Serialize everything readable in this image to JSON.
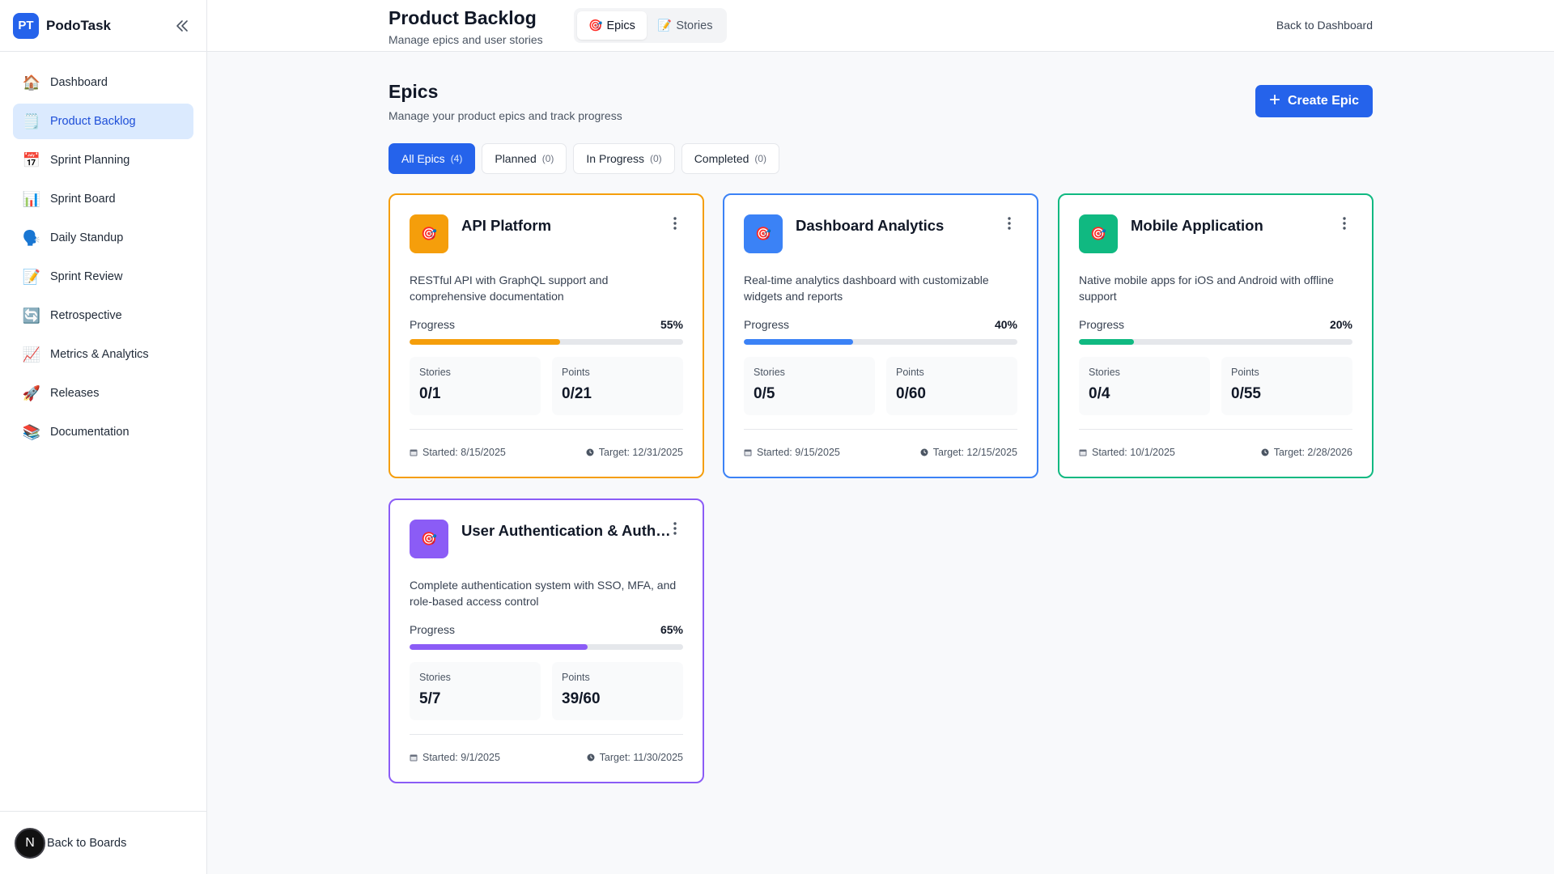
{
  "app": {
    "logo_text": "PT",
    "name": "PodoTask"
  },
  "sidebar": {
    "items": [
      {
        "label": "Dashboard",
        "icon": "🏠",
        "icon_name": "house-icon",
        "active": false
      },
      {
        "label": "Product Backlog",
        "icon": "🗒️",
        "icon_name": "notepad-icon",
        "active": true
      },
      {
        "label": "Sprint Planning",
        "icon": "📅",
        "icon_name": "calendar-icon",
        "active": false
      },
      {
        "label": "Sprint Board",
        "icon": "📊",
        "icon_name": "bar-chart-icon",
        "active": false
      },
      {
        "label": "Daily Standup",
        "icon": "🗣️",
        "icon_name": "speaking-head-icon",
        "active": false
      },
      {
        "label": "Sprint Review",
        "icon": "📝",
        "icon_name": "memo-icon",
        "active": false
      },
      {
        "label": "Retrospective",
        "icon": "🔄",
        "icon_name": "refresh-icon",
        "active": false
      },
      {
        "label": "Metrics & Analytics",
        "icon": "📈",
        "icon_name": "trend-chart-icon",
        "active": false
      },
      {
        "label": "Releases",
        "icon": "🚀",
        "icon_name": "rocket-icon",
        "active": false
      },
      {
        "label": "Documentation",
        "icon": "📚",
        "icon_name": "books-icon",
        "active": false
      }
    ],
    "footer": {
      "badge": "N",
      "label": "Back to Boards"
    }
  },
  "header": {
    "title": "Product Backlog",
    "subtitle": "Manage epics and user stories",
    "tabs": [
      {
        "label": "Epics",
        "icon": "🎯",
        "active": true
      },
      {
        "label": "Stories",
        "icon": "📝",
        "active": false
      }
    ],
    "back_link": "Back to Dashboard"
  },
  "main": {
    "title": "Epics",
    "subtitle": "Manage your product epics and track progress",
    "create_button": "Create Epic",
    "filters": [
      {
        "label": "All Epics",
        "count": "(4)",
        "active": true
      },
      {
        "label": "Planned",
        "count": "(0)",
        "active": false
      },
      {
        "label": "In Progress",
        "count": "(0)",
        "active": false
      },
      {
        "label": "Completed",
        "count": "(0)",
        "active": false
      }
    ],
    "labels": {
      "progress": "Progress",
      "stories": "Stories",
      "points": "Points"
    },
    "epics": [
      {
        "title": "API Platform",
        "description": "RESTful API with GraphQL support and comprehensive documentation",
        "progress": 55,
        "progress_text": "55%",
        "stories": "0/1",
        "points": "0/21",
        "started": "Started: 8/15/2025",
        "target": "Target: 12/31/2025",
        "color": "#f59e0b",
        "icon": "🎯"
      },
      {
        "title": "Dashboard Analytics",
        "description": "Real-time analytics dashboard with customizable widgets and reports",
        "progress": 40,
        "progress_text": "40%",
        "stories": "0/5",
        "points": "0/60",
        "started": "Started: 9/15/2025",
        "target": "Target: 12/15/2025",
        "color": "#3b82f6",
        "icon": "🎯"
      },
      {
        "title": "Mobile Application",
        "description": "Native mobile apps for iOS and Android with offline support",
        "progress": 20,
        "progress_text": "20%",
        "stories": "0/4",
        "points": "0/55",
        "started": "Started: 10/1/2025",
        "target": "Target: 2/28/2026",
        "color": "#10b981",
        "icon": "🎯"
      },
      {
        "title": "User Authentication & Authorization",
        "description": "Complete authentication system with SSO, MFA, and role-based access control",
        "progress": 65,
        "progress_text": "65%",
        "stories": "5/7",
        "points": "39/60",
        "started": "Started: 9/1/2025",
        "target": "Target: 11/30/2025",
        "color": "#8b5cf6",
        "icon": "🎯"
      }
    ]
  }
}
